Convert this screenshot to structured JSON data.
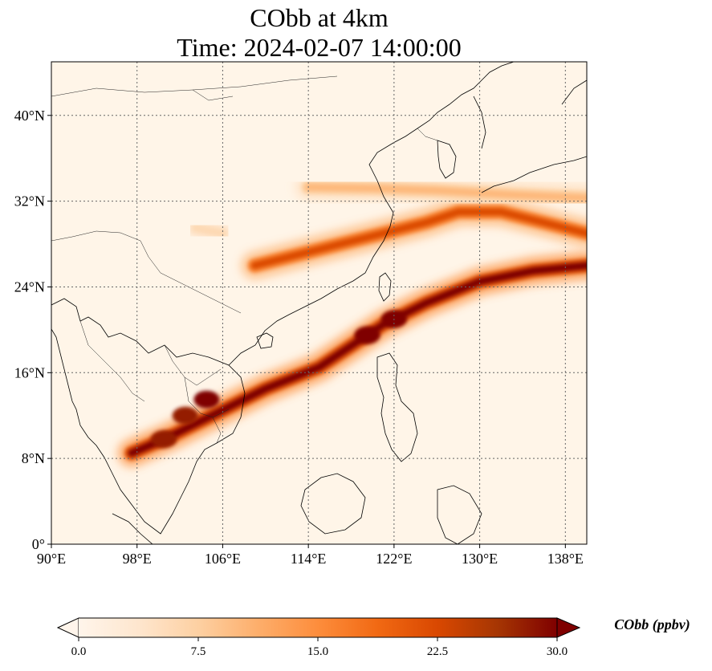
{
  "title": {
    "line1": "CObb at 4km",
    "line2": "Time: 2024-02-07 14:00:00"
  },
  "map": {
    "lon_range": [
      90,
      140
    ],
    "lat_range": [
      0,
      45
    ],
    "lon_ticks": [
      {
        "value": 90,
        "label": "90°E"
      },
      {
        "value": 98,
        "label": "98°E"
      },
      {
        "value": 106,
        "label": "106°E"
      },
      {
        "value": 114,
        "label": "114°E"
      },
      {
        "value": 122,
        "label": "122°E"
      },
      {
        "value": 130,
        "label": "130°E"
      },
      {
        "value": 138,
        "label": "138°E"
      }
    ],
    "lat_ticks": [
      {
        "value": 0,
        "label": "0°"
      },
      {
        "value": 8,
        "label": "8°N"
      },
      {
        "value": 16,
        "label": "16°N"
      },
      {
        "value": 24,
        "label": "24°N"
      },
      {
        "value": 32,
        "label": "32°N"
      },
      {
        "value": 40,
        "label": "40°N"
      }
    ],
    "gridlines": true,
    "background_color": "#fff5e8"
  },
  "colorbar": {
    "label": "CObb (ppbv)",
    "min": 0,
    "max": 30,
    "extend": "both",
    "ticks": [
      "0.0",
      "7.5",
      "15.0",
      "22.5",
      "30.0"
    ],
    "colormap": [
      "#fff5eb",
      "#fee6ce",
      "#fdd0a2",
      "#fdae6b",
      "#fd8d3c",
      "#f16913",
      "#d94801",
      "#a63603",
      "#7f0000"
    ]
  },
  "chart_data": {
    "type": "heatmap",
    "variable": "CObb",
    "units": "ppbv",
    "xlim": [
      90,
      140
    ],
    "ylim": [
      0,
      45
    ],
    "plume_bands": [
      {
        "name_hint": "southern band",
        "path_lon_lat": [
          [
            97.5,
            8.5
          ],
          [
            101,
            10
          ],
          [
            105,
            12
          ],
          [
            110,
            14.5
          ],
          [
            115,
            16.5
          ],
          [
            118,
            18.5
          ],
          [
            121,
            20.5
          ],
          [
            125,
            22.5
          ],
          [
            130,
            24.5
          ],
          [
            135,
            25.5
          ],
          [
            140,
            26
          ]
        ],
        "peak_value": 30
      },
      {
        "name_hint": "northern band",
        "path_lon_lat": [
          [
            109,
            26
          ],
          [
            113,
            27
          ],
          [
            117,
            28
          ],
          [
            121,
            29
          ],
          [
            125,
            30
          ],
          [
            128,
            31
          ],
          [
            132,
            31
          ],
          [
            136,
            30
          ],
          [
            140,
            29
          ]
        ],
        "peak_value": 22
      },
      {
        "name_hint": "yellow sea band",
        "path_lon_lat": [
          [
            114,
            33.3
          ],
          [
            120,
            33.2
          ],
          [
            126,
            33
          ],
          [
            133,
            32.6
          ],
          [
            140,
            32.3
          ]
        ],
        "peak_value": 10
      },
      {
        "name_hint": "inland patch",
        "path_lon_lat": [
          [
            103.5,
            29.5
          ],
          [
            106,
            29
          ]
        ],
        "peak_value": 6
      }
    ],
    "hotspots": [
      {
        "lon": 104.5,
        "lat": 13.5,
        "value": 30
      },
      {
        "lon": 102.5,
        "lat": 12,
        "value": 28
      },
      {
        "lon": 100.5,
        "lat": 9.8,
        "value": 28
      },
      {
        "lon": 119.5,
        "lat": 19.5,
        "value": 30
      },
      {
        "lon": 122,
        "lat": 21,
        "value": 30
      }
    ]
  }
}
